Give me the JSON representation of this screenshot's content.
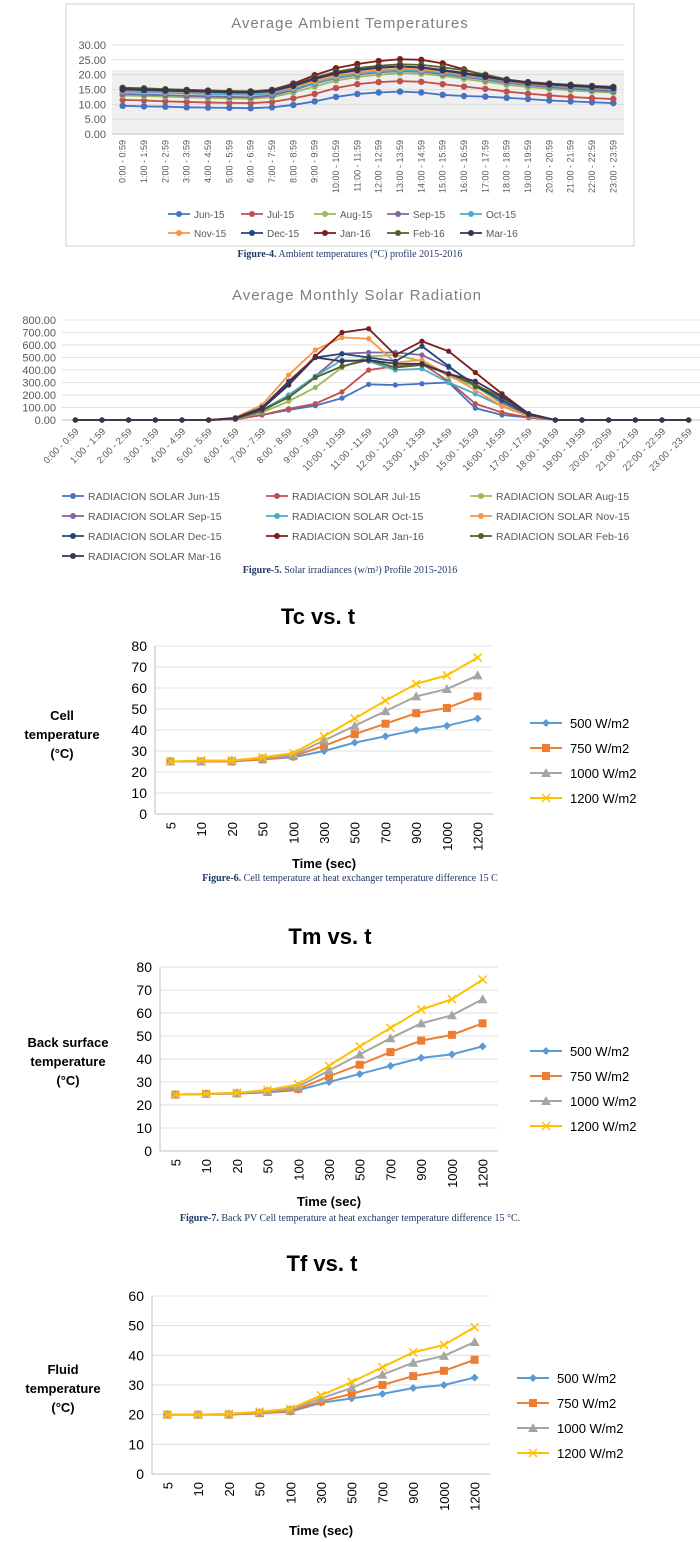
{
  "colors": {
    "blue": "#4472c4",
    "red": "#c0504d",
    "green": "#9bbb59",
    "purple": "#8064a2",
    "teal": "#4bacc6",
    "orange": "#f79646",
    "navy": "#1f497d",
    "maroon": "#7f1d1d",
    "darkgreen": "#4f6228",
    "darkpurple": "#3f3151",
    "s500": "#5b9bd5",
    "s750": "#ed7d31",
    "s1000": "#a5a5a5",
    "s1200": "#ffc000"
  },
  "captions": {
    "fig4": {
      "label": "Figure-4.",
      "text": " Ambient temperatures (°C) profile 2015-2016"
    },
    "fig5": {
      "label": "Figure-5.",
      "text": " Solar irradiances (w/m²) Profile 2015-2016"
    },
    "fig6": {
      "label": "Figure-6.",
      "text": " Cell temperature at heat exchanger temperature difference 15 C"
    },
    "fig7": {
      "label": "Figure-7.",
      "text": " Back PV Cell temperature at heat exchanger temperature difference 15 °C."
    }
  },
  "chart_data": [
    {
      "type": "line",
      "title": "Average Ambient Temperatures",
      "ylim": [
        0,
        30
      ],
      "yticks": [
        "0.00",
        "5.00",
        "10.00",
        "15.00",
        "20.00",
        "25.00",
        "30.00"
      ],
      "categories": [
        "0:00 - 0:59",
        "1:00 - 1:59",
        "2:00 - 2:59",
        "3:00 - 3:59",
        "4:00 - 4:59",
        "5:00 - 5:59",
        "6:00 - 6:59",
        "7:00 - 7:59",
        "8:00 - 8:59",
        "9:00 - 9:59",
        "10:00 - 10:59",
        "11:00 - 11:59",
        "12:00 - 12:59",
        "13:00 - 13:59",
        "14:00 - 14:59",
        "15:00 - 15:59",
        "16:00 - 16:59",
        "17:00 - 17:59",
        "18:00 - 18:59",
        "19:00 - 19:59",
        "20:00 - 20:59",
        "21:00 - 21:59",
        "22:00 - 22:59",
        "23:00 - 23:59"
      ],
      "series": [
        {
          "name": "Jun-15",
          "color": "blue",
          "values": [
            9.5,
            9.3,
            9.2,
            9.0,
            8.9,
            8.8,
            8.7,
            9.0,
            9.8,
            11.0,
            12.5,
            13.5,
            14.0,
            14.3,
            14.0,
            13.2,
            12.8,
            12.6,
            12.2,
            11.8,
            11.3,
            11.0,
            10.7,
            10.4
          ]
        },
        {
          "name": "Jul-15",
          "color": "red",
          "values": [
            11.5,
            11.3,
            11.0,
            10.8,
            10.6,
            10.5,
            10.4,
            10.8,
            12.0,
            13.5,
            15.5,
            16.8,
            17.5,
            17.8,
            17.6,
            16.8,
            16.0,
            15.2,
            14.3,
            13.6,
            13.0,
            12.5,
            12.1,
            11.8
          ]
        },
        {
          "name": "Aug-15",
          "color": "green",
          "values": [
            13.0,
            12.8,
            12.6,
            12.4,
            12.2,
            12.0,
            11.9,
            12.4,
            14.0,
            16.0,
            18.0,
            19.2,
            20.0,
            20.5,
            20.3,
            19.6,
            18.6,
            17.6,
            16.6,
            15.8,
            15.2,
            14.7,
            14.3,
            13.9
          ]
        },
        {
          "name": "Sep-15",
          "color": "purple",
          "values": [
            13.5,
            13.3,
            13.1,
            12.9,
            12.7,
            12.5,
            12.4,
            13.0,
            14.8,
            17.0,
            18.8,
            20.0,
            20.8,
            21.2,
            21.0,
            20.2,
            19.3,
            18.3,
            17.3,
            16.5,
            15.8,
            15.3,
            14.8,
            14.4
          ]
        },
        {
          "name": "Oct-15",
          "color": "teal",
          "values": [
            14.3,
            14.1,
            13.9,
            13.7,
            13.5,
            13.3,
            13.2,
            13.6,
            15.2,
            17.2,
            19.0,
            20.3,
            21.1,
            21.5,
            21.3,
            20.6,
            19.6,
            18.6,
            17.6,
            16.8,
            16.2,
            15.7,
            15.3,
            14.9
          ]
        },
        {
          "name": "Nov-15",
          "color": "orange",
          "values": [
            14.8,
            14.6,
            14.4,
            14.2,
            14.0,
            13.8,
            13.7,
            14.2,
            15.8,
            17.8,
            19.6,
            20.8,
            21.6,
            22.0,
            21.8,
            21.0,
            20.0,
            19.0,
            18.0,
            17.2,
            16.6,
            16.1,
            15.7,
            15.3
          ]
        },
        {
          "name": "Dec-15",
          "color": "navy",
          "values": [
            15.0,
            14.8,
            14.6,
            14.4,
            14.2,
            14.0,
            13.9,
            14.4,
            16.2,
            18.5,
            20.3,
            21.5,
            22.3,
            22.7,
            22.4,
            21.4,
            20.3,
            19.2,
            18.1,
            17.3,
            16.7,
            16.2,
            15.8,
            15.4
          ]
        },
        {
          "name": "Jan-16",
          "color": "maroon",
          "values": [
            15.5,
            15.3,
            15.0,
            14.8,
            14.6,
            14.4,
            14.3,
            14.9,
            17.0,
            19.8,
            22.2,
            23.6,
            24.6,
            25.2,
            25.0,
            23.8,
            21.8,
            19.6,
            18.1,
            17.2,
            16.7,
            16.3,
            16.0,
            15.7
          ]
        },
        {
          "name": "Feb-16",
          "color": "darkgreen",
          "values": [
            15.6,
            15.4,
            15.1,
            14.9,
            14.7,
            14.5,
            14.4,
            14.8,
            16.6,
            19.0,
            21.0,
            22.2,
            23.0,
            23.5,
            23.3,
            22.5,
            21.5,
            20.0,
            18.4,
            17.5,
            17.0,
            16.6,
            16.2,
            15.9
          ]
        },
        {
          "name": "Mar-16",
          "color": "darkpurple",
          "values": [
            15.2,
            15.0,
            14.8,
            14.6,
            14.4,
            14.2,
            14.1,
            14.6,
            16.4,
            18.6,
            20.5,
            21.6,
            22.4,
            22.8,
            22.5,
            21.6,
            20.6,
            19.5,
            18.2,
            17.4,
            16.9,
            16.4,
            16.0,
            15.7
          ]
        }
      ]
    },
    {
      "type": "line",
      "title": "Average Monthly Solar Radiation",
      "ylim": [
        0,
        800
      ],
      "yticks": [
        "0.00",
        "100.00",
        "200.00",
        "300.00",
        "400.00",
        "500.00",
        "600.00",
        "700.00",
        "800.00"
      ],
      "categories": [
        "0:00 - 0:59",
        "1:00 - 1:59",
        "2:00 - 2:59",
        "3:00 - 3:59",
        "4:00 - 4:59",
        "5:00 - 5:59",
        "6:00 - 6:59",
        "7:00 - 7:59",
        "8:00 - 8:59",
        "9:00 - 9:59",
        "10:00 - 10:59",
        "11:00 - 11:59",
        "12:00 - 12:59",
        "13:00 - 13:59",
        "14:00 - 14:59",
        "15:00 - 15:59",
        "16:00 - 16:59",
        "17:00 - 17:59",
        "18:00 - 18:59",
        "19:00 - 19:59",
        "20:00 - 20:59",
        "21:00 - 21:59",
        "22:00 - 22:59",
        "23:00 - 23:59"
      ],
      "series": [
        {
          "name": "RADIACION SOLAR Jun-15",
          "color": "blue",
          "values": [
            0,
            0,
            0,
            0,
            0,
            0,
            5,
            40,
            80,
            115,
            175,
            285,
            280,
            290,
            300,
            95,
            40,
            20,
            0,
            0,
            0,
            0,
            0,
            0
          ]
        },
        {
          "name": "RADIACION SOLAR Jul-15",
          "color": "red",
          "values": [
            0,
            0,
            0,
            0,
            0,
            0,
            5,
            40,
            90,
            130,
            225,
            400,
            430,
            450,
            310,
            130,
            60,
            20,
            0,
            0,
            0,
            0,
            0,
            0
          ]
        },
        {
          "name": "RADIACION SOLAR Aug-15",
          "color": "green",
          "values": [
            0,
            0,
            0,
            0,
            0,
            0,
            8,
            60,
            150,
            260,
            420,
            510,
            520,
            470,
            350,
            270,
            130,
            40,
            0,
            0,
            0,
            0,
            0,
            0
          ]
        },
        {
          "name": "RADIACION SOLAR Sep-15",
          "color": "purple",
          "values": [
            0,
            0,
            0,
            0,
            0,
            0,
            10,
            70,
            190,
            350,
            530,
            540,
            540,
            520,
            420,
            290,
            140,
            40,
            0,
            0,
            0,
            0,
            0,
            0
          ]
        },
        {
          "name": "RADIACION SOLAR Oct-15",
          "color": "teal",
          "values": [
            0,
            0,
            0,
            0,
            0,
            0,
            12,
            80,
            200,
            350,
            480,
            470,
            400,
            410,
            300,
            210,
            110,
            30,
            0,
            0,
            0,
            0,
            0,
            0
          ]
        },
        {
          "name": "RADIACION SOLAR Nov-15",
          "color": "orange",
          "values": [
            0,
            0,
            0,
            0,
            0,
            0,
            20,
            120,
            360,
            560,
            660,
            650,
            460,
            480,
            360,
            240,
            110,
            30,
            0,
            0,
            0,
            0,
            0,
            0
          ]
        },
        {
          "name": "RADIACION SOLAR Dec-15",
          "color": "navy",
          "values": [
            0,
            0,
            0,
            0,
            0,
            0,
            15,
            100,
            310,
            500,
            530,
            500,
            470,
            590,
            430,
            270,
            160,
            40,
            0,
            0,
            0,
            0,
            0,
            0
          ]
        },
        {
          "name": "RADIACION SOLAR Jan-16",
          "color": "maroon",
          "values": [
            0,
            0,
            0,
            0,
            0,
            0,
            15,
            90,
            290,
            510,
            700,
            730,
            520,
            630,
            550,
            380,
            210,
            50,
            0,
            0,
            0,
            0,
            0,
            0
          ]
        },
        {
          "name": "RADIACION SOLAR Feb-16",
          "color": "darkgreen",
          "values": [
            0,
            0,
            0,
            0,
            0,
            0,
            10,
            80,
            180,
            340,
            430,
            480,
            420,
            440,
            370,
            280,
            180,
            50,
            0,
            0,
            0,
            0,
            0,
            0
          ]
        },
        {
          "name": "RADIACION SOLAR Mar-16",
          "color": "darkpurple",
          "values": [
            0,
            0,
            0,
            0,
            0,
            0,
            12,
            90,
            280,
            500,
            470,
            480,
            450,
            450,
            370,
            310,
            190,
            50,
            0,
            0,
            0,
            0,
            0,
            0
          ]
        }
      ]
    },
    {
      "type": "line",
      "title": "Tc vs. t",
      "ylabel": [
        "Cell",
        "temperature",
        "(°C)"
      ],
      "xlabel": "Time (sec)",
      "ylim": [
        0,
        80
      ],
      "yticks": [
        "0",
        "10",
        "20",
        "30",
        "40",
        "50",
        "60",
        "70",
        "80"
      ],
      "categories": [
        "5",
        "10",
        "20",
        "50",
        "100",
        "300",
        "500",
        "700",
        "900",
        "1000",
        "1200"
      ],
      "series": [
        {
          "name": "500 W/m2",
          "color": "s500",
          "marker": "diamond",
          "values": [
            25,
            25,
            25,
            26,
            27,
            30,
            34,
            37,
            40,
            42,
            45.5
          ]
        },
        {
          "name": "750 W/m2",
          "color": "s750",
          "marker": "square",
          "values": [
            25,
            25,
            25,
            26,
            27.5,
            32.5,
            38,
            43,
            48,
            50.5,
            56
          ]
        },
        {
          "name": "1000 W/m2",
          "color": "s1000",
          "marker": "triangle",
          "values": [
            25,
            25,
            25.5,
            26.5,
            28,
            35,
            42,
            49,
            56,
            59.5,
            66
          ]
        },
        {
          "name": "1200 W/m2",
          "color": "s1200",
          "marker": "x",
          "values": [
            25,
            25.5,
            25.5,
            27,
            29,
            37,
            45.5,
            54,
            62,
            66,
            74.5
          ]
        }
      ]
    },
    {
      "type": "line",
      "title": "Tm vs. t",
      "ylabel": [
        "Back surface",
        "temperature",
        "(°C)"
      ],
      "xlabel": "Time (sec)",
      "ylim": [
        0,
        80
      ],
      "yticks": [
        "0",
        "10",
        "20",
        "30",
        "40",
        "50",
        "60",
        "70",
        "80"
      ],
      "categories": [
        "5",
        "10",
        "20",
        "50",
        "100",
        "300",
        "500",
        "700",
        "900",
        "1000",
        "1200"
      ],
      "series": [
        {
          "name": "500 W/m2",
          "color": "s500",
          "marker": "diamond",
          "values": [
            24.5,
            24.8,
            25,
            25.5,
            26.5,
            30,
            33.5,
            37,
            40.5,
            42,
            45.5
          ]
        },
        {
          "name": "750 W/m2",
          "color": "s750",
          "marker": "square",
          "values": [
            24.5,
            24.8,
            25,
            25.7,
            27,
            32.5,
            37.5,
            43,
            48,
            50.5,
            55.5
          ]
        },
        {
          "name": "1000 W/m2",
          "color": "s1000",
          "marker": "triangle",
          "values": [
            24.5,
            24.8,
            25.2,
            26,
            28,
            35,
            42,
            49,
            55.5,
            59,
            66
          ]
        },
        {
          "name": "1200 W/m2",
          "color": "s1200",
          "marker": "x",
          "values": [
            24.5,
            24.9,
            25.3,
            26.5,
            29,
            37,
            45.5,
            53.5,
            61.5,
            66,
            74.5
          ]
        }
      ]
    },
    {
      "type": "line",
      "title": "Tf vs. t",
      "ylabel": [
        "Fluid",
        "temperature",
        "(°C)"
      ],
      "xlabel": "Time (sec)",
      "ylim": [
        0,
        60
      ],
      "yticks": [
        "0",
        "10",
        "20",
        "30",
        "40",
        "50",
        "60"
      ],
      "categories": [
        "5",
        "10",
        "20",
        "50",
        "100",
        "300",
        "500",
        "700",
        "900",
        "1000",
        "1200"
      ],
      "series": [
        {
          "name": "500 W/m2",
          "color": "s500",
          "marker": "diamond",
          "values": [
            20,
            20,
            20,
            20.5,
            21,
            24,
            25.5,
            27,
            29,
            30,
            32.5
          ]
        },
        {
          "name": "750 W/m2",
          "color": "s750",
          "marker": "square",
          "values": [
            20,
            20,
            20,
            20.5,
            21.3,
            24.5,
            27,
            30,
            33,
            34.8,
            38.5
          ]
        },
        {
          "name": "1000 W/m2",
          "color": "s1000",
          "marker": "triangle",
          "values": [
            20,
            20,
            20.2,
            20.7,
            21.7,
            25.5,
            29,
            33.5,
            37.5,
            39.8,
            44.5
          ]
        },
        {
          "name": "1200 W/m2",
          "color": "s1200",
          "marker": "x",
          "values": [
            20,
            20,
            20.3,
            21,
            22,
            26.5,
            31,
            36,
            41,
            43.5,
            49.5
          ]
        }
      ]
    }
  ]
}
